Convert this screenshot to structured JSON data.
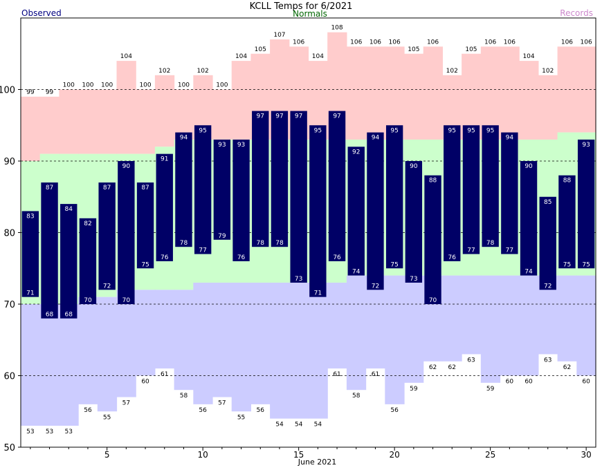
{
  "colors": {
    "record_band": "#ffcccc",
    "normal_band": "#ccffcc",
    "low_band": "#ccccff",
    "observed_bar": "#000066",
    "observed_title": "#000080",
    "normals_title": "#006600",
    "records_title": "#cc88cc"
  },
  "chart_data": {
    "type": "bar",
    "title": "KCLL Temps for 6/2021",
    "xlabel": "June 2021",
    "ylabel": "",
    "legend": {
      "left": "Observed",
      "center": "Normals",
      "right": "Records"
    },
    "xlim": [
      0.5,
      30.5
    ],
    "ylim": [
      50,
      110
    ],
    "yticks": [
      50,
      60,
      70,
      80,
      90,
      100
    ],
    "xticks": [
      5,
      10,
      15,
      20,
      25,
      30
    ],
    "grid": "horizontal dashed at 60, 70, 80, 90, 100",
    "days": [
      1,
      2,
      3,
      4,
      5,
      6,
      7,
      8,
      9,
      10,
      11,
      12,
      13,
      14,
      15,
      16,
      17,
      18,
      19,
      20,
      21,
      22,
      23,
      24,
      25,
      26,
      27,
      28,
      29,
      30
    ],
    "series": [
      {
        "name": "Observed high",
        "values": [
          83,
          87,
          84,
          82,
          87,
          90,
          87,
          91,
          94,
          95,
          93,
          93,
          97,
          97,
          97,
          95,
          97,
          92,
          94,
          95,
          90,
          88,
          95,
          95,
          95,
          94,
          90,
          85,
          88,
          93
        ]
      },
      {
        "name": "Observed low",
        "values": [
          71,
          68,
          68,
          70,
          72,
          70,
          75,
          76,
          78,
          77,
          79,
          76,
          78,
          78,
          73,
          71,
          76,
          74,
          72,
          75,
          73,
          70,
          76,
          77,
          78,
          77,
          74,
          72,
          75,
          75
        ]
      },
      {
        "name": "Record high",
        "values": [
          99,
          99,
          100,
          100,
          100,
          104,
          100,
          102,
          100,
          102,
          100,
          104,
          105,
          107,
          106,
          104,
          108,
          106,
          106,
          106,
          105,
          106,
          102,
          105,
          106,
          106,
          104,
          102,
          106,
          106
        ]
      },
      {
        "name": "Record low",
        "values": [
          53,
          53,
          53,
          56,
          55,
          57,
          60,
          61,
          58,
          56,
          57,
          55,
          56,
          54,
          54,
          54,
          61,
          58,
          61,
          56,
          59,
          62,
          62,
          63,
          59,
          60,
          60,
          63,
          62,
          60
        ]
      },
      {
        "name": "Normal high",
        "values": [
          90,
          91,
          91,
          91,
          91,
          91,
          91,
          92,
          93,
          93,
          93,
          93,
          93,
          93,
          93,
          93,
          93,
          93,
          93,
          93,
          93,
          93,
          93,
          93,
          93,
          93,
          93,
          93,
          94,
          94
        ]
      },
      {
        "name": "Normal low",
        "values": [
          70,
          70,
          70,
          71,
          71,
          72,
          72,
          72,
          72,
          73,
          73,
          73,
          73,
          73,
          73,
          73,
          73,
          74,
          74,
          74,
          74,
          74,
          74,
          74,
          74,
          74,
          74,
          74,
          74,
          74
        ]
      }
    ]
  }
}
